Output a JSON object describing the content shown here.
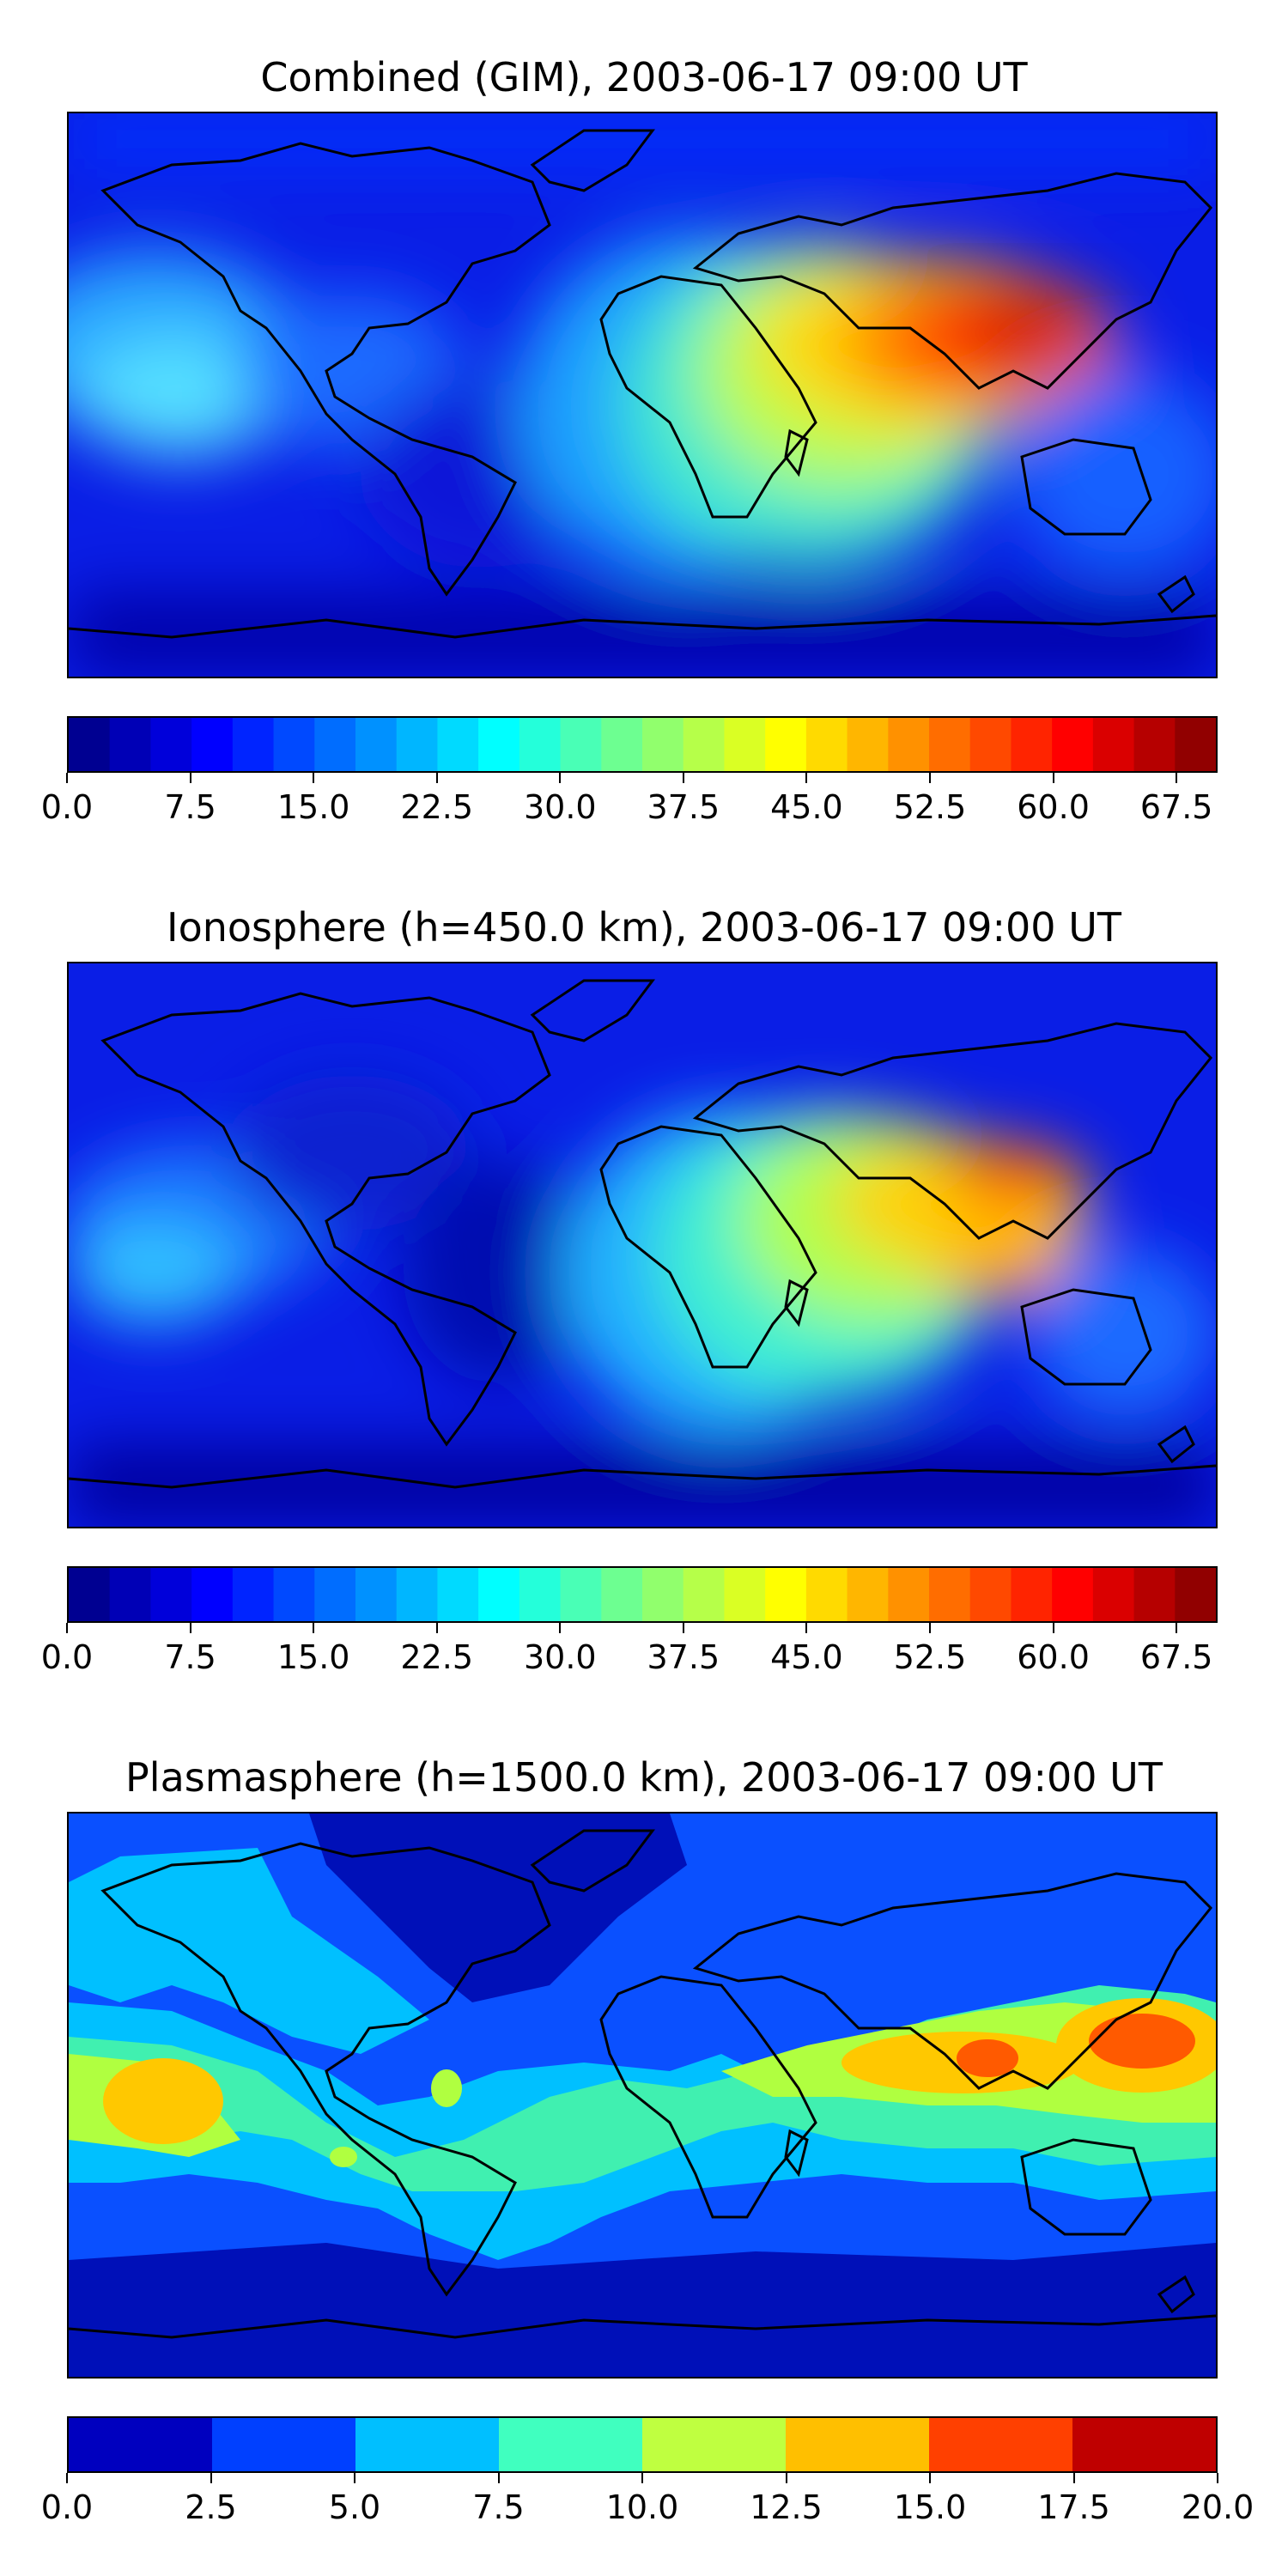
{
  "panels": [
    {
      "title": "Combined (GIM), 2003-06-17 09:00 UT",
      "colorbar": {
        "min": 0,
        "max": 70,
        "levels": 28,
        "tick_labels": [
          "0.0",
          "7.5",
          "15.0",
          "22.5",
          "30.0",
          "37.5",
          "45.0",
          "52.5",
          "60.0",
          "67.5"
        ],
        "tick_values": [
          0,
          7.5,
          15,
          22.5,
          30,
          37.5,
          45,
          52.5,
          60,
          67.5
        ]
      }
    },
    {
      "title": "Ionosphere  (h=450.0 km), 2003-06-17 09:00 UT",
      "colorbar": {
        "min": 0,
        "max": 70,
        "levels": 28,
        "tick_labels": [
          "0.0",
          "7.5",
          "15.0",
          "22.5",
          "30.0",
          "37.5",
          "45.0",
          "52.5",
          "60.0",
          "67.5"
        ],
        "tick_values": [
          0,
          7.5,
          15,
          22.5,
          30,
          37.5,
          45,
          52.5,
          60,
          67.5
        ]
      }
    },
    {
      "title": "Plasmasphere (h=1500.0 km), 2003-06-17 09:00 UT",
      "colorbar": {
        "min": 0,
        "max": 20,
        "levels": 8,
        "tick_labels": [
          "0.0",
          "2.5",
          "5.0",
          "7.5",
          "10.0",
          "12.5",
          "15.0",
          "17.5",
          "20.0"
        ],
        "tick_values": [
          0,
          2.5,
          5,
          7.5,
          10,
          12.5,
          15,
          17.5,
          20
        ]
      }
    }
  ],
  "colormap": "jet",
  "colors": {
    "coastline": "#000000",
    "jet_stops": [
      "#00007f",
      "#0000ff",
      "#007fff",
      "#00ffff",
      "#7fff7f",
      "#ffff00",
      "#ff7f00",
      "#ff0000",
      "#7f0000"
    ]
  }
}
